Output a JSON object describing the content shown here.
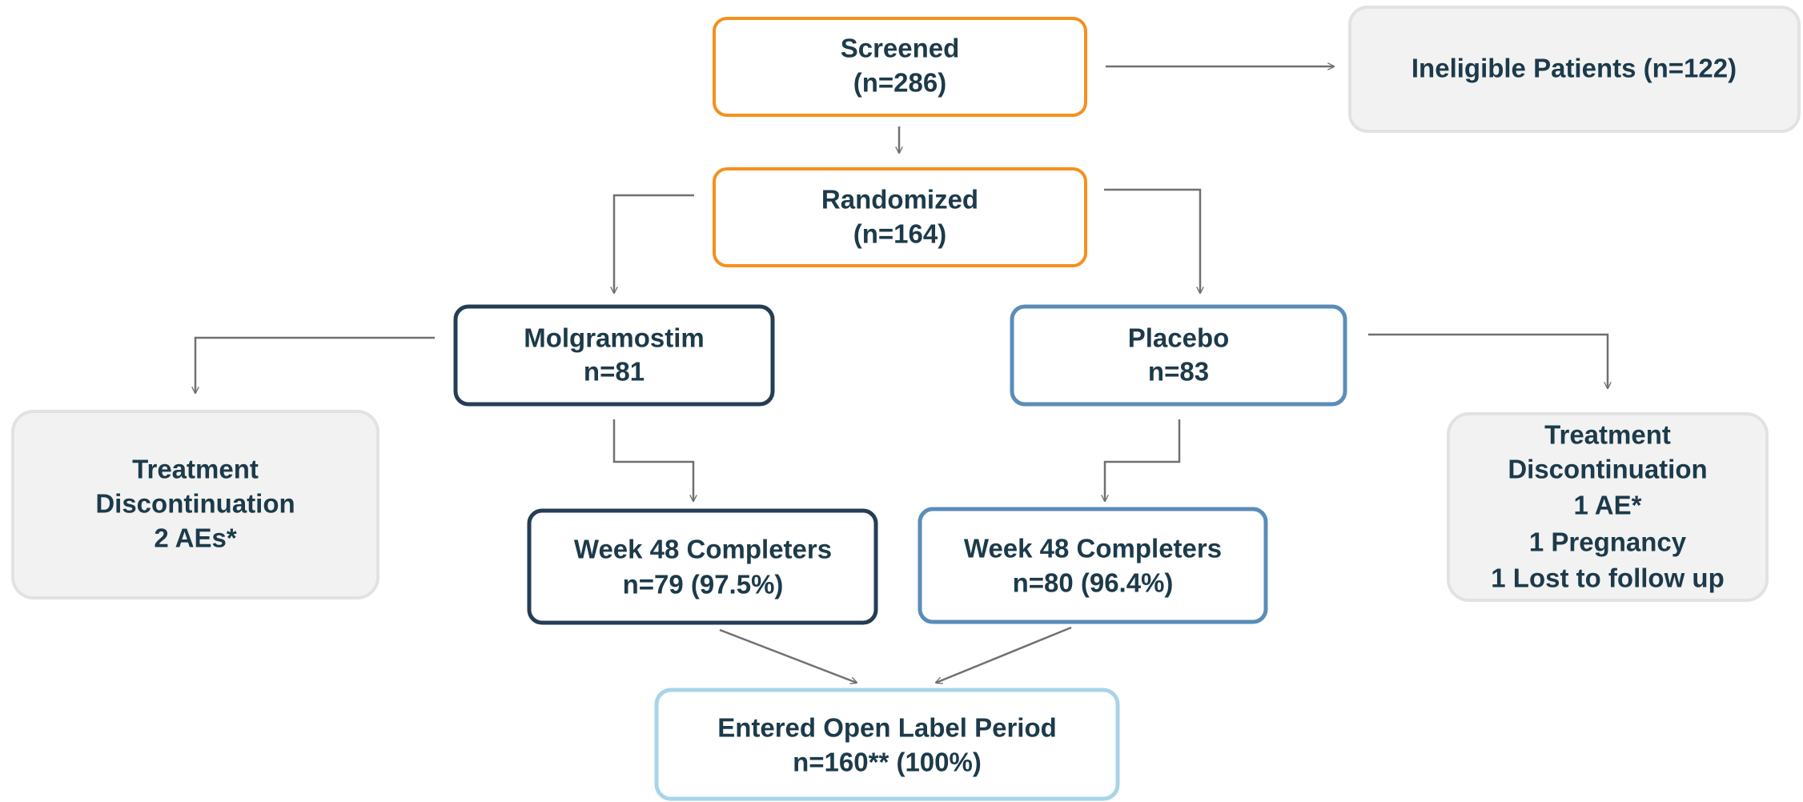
{
  "nodes": [
    {
      "lines": [
        "Screened",
        "(n=286)"
      ]
    },
    {
      "lines": [
        "Ineligible Patients (n=122)"
      ]
    },
    {
      "lines": [
        "Randomized",
        "(n=164)"
      ]
    },
    {
      "lines": [
        "Molgramostim",
        "n=81"
      ]
    },
    {
      "lines": [
        "Placebo",
        "n=83"
      ]
    },
    {
      "lines": [
        "Treatment",
        "Discontinuation",
        "2 AEs*"
      ]
    },
    {
      "lines": [
        "Treatment",
        "Discontinuation",
        "1 AE*",
        "1 Pregnancy",
        "1 Lost to follow up"
      ]
    },
    {
      "lines": [
        "Week 48 Completers",
        "n=79 (97.5%)"
      ]
    },
    {
      "lines": [
        "Week 48 Completers",
        "n=80 (96.4%)"
      ]
    },
    {
      "lines": [
        "Entered Open Label Period",
        "n=160** (100%)"
      ]
    }
  ]
}
